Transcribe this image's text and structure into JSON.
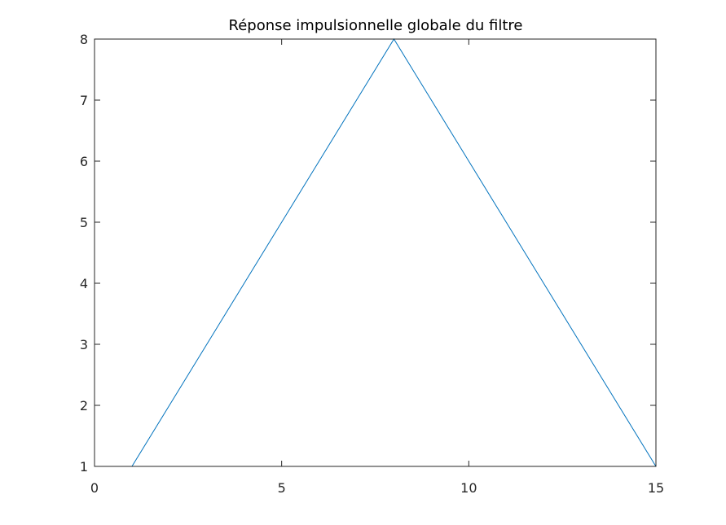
{
  "chart_data": {
    "type": "line",
    "title": "Réponse impulsionnelle globale du filtre",
    "xlabel": "",
    "ylabel": "",
    "xlim": [
      0,
      15
    ],
    "ylim": [
      1,
      8
    ],
    "x_ticks": [
      0,
      5,
      10,
      15
    ],
    "y_ticks": [
      1,
      2,
      3,
      4,
      5,
      6,
      7,
      8
    ],
    "grid": false,
    "box": true,
    "series": [
      {
        "color": "#0072BD",
        "x": [
          1,
          2,
          3,
          4,
          5,
          6,
          7,
          8,
          9,
          10,
          11,
          12,
          13,
          14,
          15
        ],
        "y": [
          1,
          2,
          3,
          4,
          5,
          6,
          7,
          8,
          7,
          6,
          5,
          4,
          3,
          2,
          1
        ]
      }
    ]
  }
}
